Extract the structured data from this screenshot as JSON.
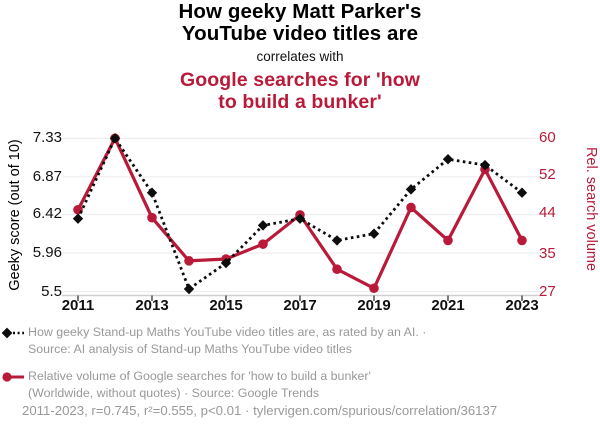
{
  "header": {
    "title_lines": [
      "How geeky Matt Parker's",
      "YouTube video titles are"
    ],
    "connector": "correlates with",
    "subtitle_lines": [
      "Google searches for 'how",
      "to build a bunker'"
    ]
  },
  "colors": {
    "accent_red": "#b91a39",
    "series_black": "#0d0d0d",
    "muted_text": "#999999",
    "gridline": "#ededed",
    "axis_line": "#cfcfcf",
    "tick_mark": "#4d4d4d"
  },
  "chart_data": {
    "type": "line",
    "x": [
      2011,
      2012,
      2013,
      2014,
      2015,
      2016,
      2017,
      2018,
      2019,
      2020,
      2021,
      2022,
      2023
    ],
    "x_tick_labels": [
      "2011",
      "2013",
      "2015",
      "2017",
      "2019",
      "2021",
      "2023"
    ],
    "series": [
      {
        "name": "geeky-score",
        "label": "How geeky Stand-up Maths YouTube video titles are, as rated by an AI.",
        "axis": "left",
        "color": "#0d0d0d",
        "style": "dotted-diamond",
        "values": [
          6.37,
          7.33,
          6.68,
          5.53,
          5.84,
          6.29,
          6.37,
          6.11,
          6.19,
          6.72,
          7.08,
          7.01,
          6.68
        ]
      },
      {
        "name": "search-volume",
        "label": "Relative volume of Google searches for 'how to build a bunker'",
        "axis": "right",
        "color": "#b91a39",
        "style": "solid-circle",
        "values": [
          44.6,
          60.0,
          42.9,
          33.6,
          34.0,
          37.2,
          43.5,
          31.8,
          27.7,
          45.1,
          38.0,
          53.3,
          38.0
        ]
      }
    ],
    "left_axis": {
      "label": "Geeky score (out of 10)",
      "ticks": [
        "7.33",
        "6.87",
        "6.42",
        "5.96",
        "5.5"
      ],
      "tick_values": [
        7.33,
        6.87,
        6.42,
        5.96,
        5.5
      ],
      "range": [
        5.5,
        7.33
      ]
    },
    "right_axis": {
      "label": "Rel. search volume",
      "ticks": [
        "60",
        "52",
        "44",
        "35",
        "27"
      ],
      "tick_values": [
        60,
        52,
        44,
        35,
        27
      ],
      "range": [
        27,
        60
      ]
    },
    "grid": true,
    "legend_position": "bottom"
  },
  "legend": {
    "entries": [
      {
        "marker": "black-diamond-dotted",
        "lines": [
          "How geeky Stand-up Maths YouTube video titles are, as rated by an AI. ·",
          "Source: AI analysis of Stand-up Maths YouTube video titles"
        ]
      },
      {
        "marker": "red-circle-solid",
        "lines": [
          "Relative volume of Google searches for 'how to build a bunker'",
          "(Worldwide, without quotes) · Source: Google Trends"
        ]
      }
    ]
  },
  "footer": {
    "text": "2011-2023, r=0.745, r²=0.555, p<0.01 · tylervigen.com/spurious/correlation/36137"
  }
}
